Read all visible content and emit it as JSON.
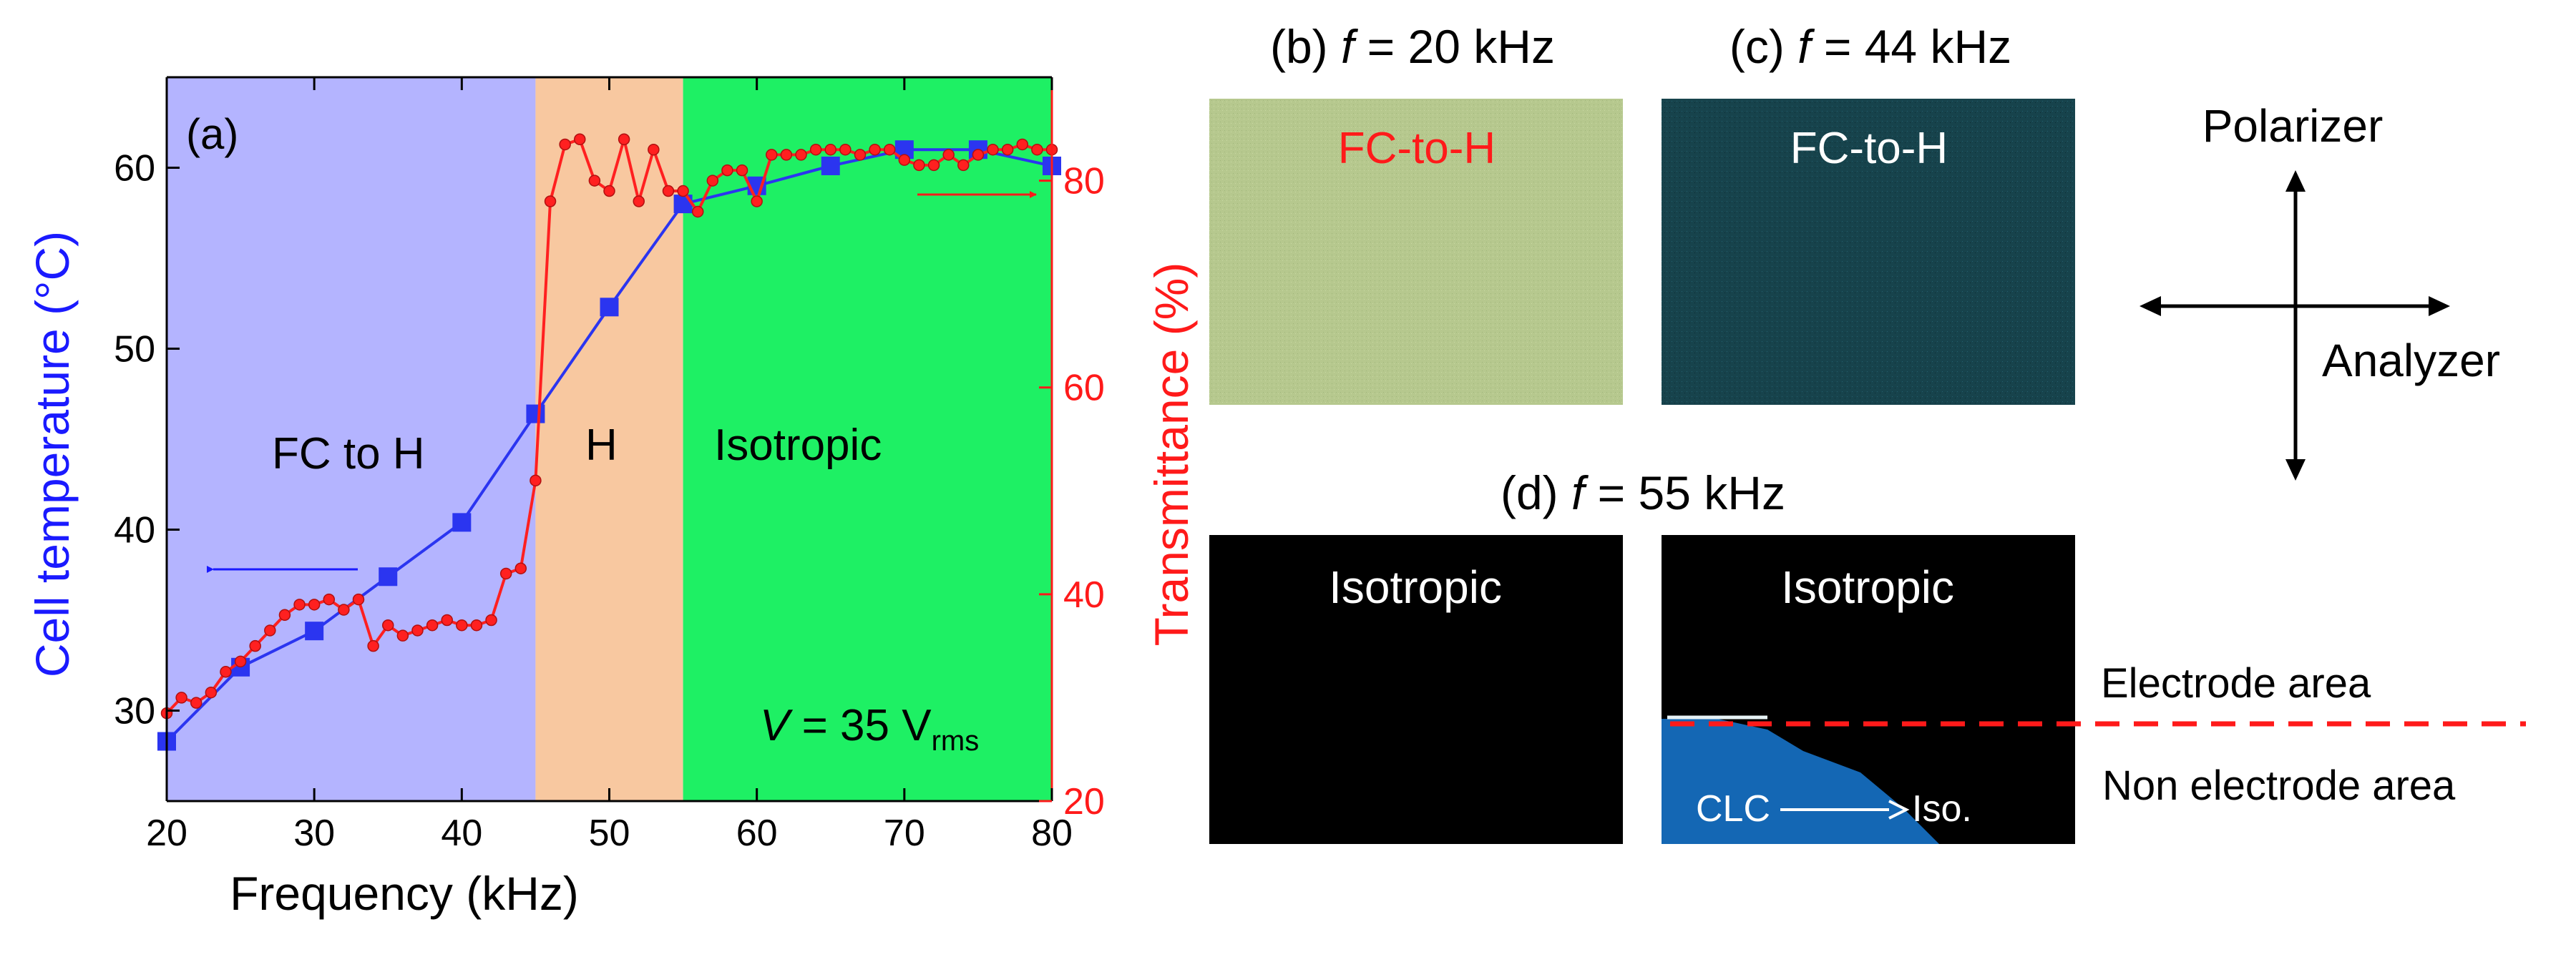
{
  "colors": {
    "left_axis": "#1a1aff",
    "right_axis": "#ff1a1a",
    "fc_region": "#b4b4ff",
    "h_region": "#f8c8a0",
    "iso_region": "#1ef064",
    "temp_series": "#2b35f0",
    "trans_series": "#ff2020",
    "panel_b": "#b6c88e",
    "panel_c": "#17434c",
    "panel_d": "#000000",
    "clc_region": "#1467b4",
    "dash_line": "#ff1a1a"
  },
  "chart_data": {
    "type": "line",
    "panel_label": "(a)",
    "xlabel": "Frequency (kHz)",
    "ylabel_left": "Cell temperature (°C)",
    "ylabel_right": "Transmittance (%)",
    "xlim": [
      20,
      80
    ],
    "ylim_left": [
      25,
      65
    ],
    "ylim_right": [
      20,
      90
    ],
    "x_ticks": [
      20,
      30,
      40,
      50,
      60,
      70,
      80
    ],
    "y_left_ticks": [
      30,
      40,
      50,
      60
    ],
    "y_right_ticks": [
      20,
      40,
      60,
      80
    ],
    "regions": [
      {
        "label": "FC to H",
        "from": 20,
        "to": 45,
        "color_key": "fc_region"
      },
      {
        "label": "H",
        "from": 45,
        "to": 55,
        "color_key": "h_region"
      },
      {
        "label": "Isotropic",
        "from": 55,
        "to": 80,
        "color_key": "iso_region"
      }
    ],
    "voltage_label": {
      "var": "V",
      "eq": " = 35 V",
      "sub": "rms"
    },
    "series": [
      {
        "name": "Cell temperature",
        "axis": "left",
        "marker": "square",
        "x": [
          20,
          25,
          30,
          35,
          40,
          45,
          50,
          55,
          60,
          65,
          70,
          75,
          80
        ],
        "values": [
          28.3,
          32.4,
          34.4,
          37.4,
          40.4,
          46.4,
          52.3,
          58.0,
          59.0,
          60.1,
          61.0,
          61.0,
          60.1
        ]
      },
      {
        "name": "Transmittance",
        "axis": "right",
        "marker": "circle",
        "x": [
          20,
          21,
          22,
          23,
          24,
          25,
          26,
          27,
          28,
          29,
          30,
          31,
          32,
          33,
          34,
          35,
          36,
          37,
          38,
          39,
          40,
          41,
          42,
          43,
          44,
          45,
          46,
          47,
          48,
          49,
          50,
          51,
          52,
          53,
          54,
          55,
          56,
          57,
          58,
          59,
          60,
          61,
          62,
          63,
          64,
          65,
          66,
          67,
          68,
          69,
          70,
          71,
          72,
          73,
          74,
          75,
          76,
          77,
          78,
          79,
          80
        ],
        "values": [
          28.5,
          30,
          29.5,
          30.5,
          32.5,
          33.5,
          35,
          36.5,
          38,
          39,
          39,
          39.5,
          38.5,
          39.5,
          35,
          37,
          36,
          36.5,
          37,
          37.5,
          37,
          37,
          37.5,
          42,
          42.5,
          51,
          78,
          83.5,
          84,
          80,
          79,
          84,
          78,
          83,
          79,
          79,
          77,
          80,
          81,
          81,
          78,
          82.5,
          82.5,
          82.5,
          83,
          83,
          83,
          82.5,
          83,
          83,
          82,
          81.5,
          81.5,
          82.5,
          81.5,
          82.5,
          83,
          83,
          83.5,
          83,
          83
        ]
      }
    ]
  },
  "panels": {
    "b": {
      "prefix": "(b) ",
      "var": "f",
      "suffix": " = 20 kHz",
      "label": "FC-to-H"
    },
    "c": {
      "prefix": "(c) ",
      "var": "f",
      "suffix": " = 44 kHz",
      "label": "FC-to-H"
    },
    "d": {
      "prefix": "(d) ",
      "var": "f",
      "suffix": " = 55 kHz",
      "label_left": "Isotropic",
      "label_right": "Isotropic",
      "clc_label": "CLC",
      "iso_label": "Iso."
    }
  },
  "legend_right": {
    "polarizer": "Polarizer",
    "analyzer": "Analyzer",
    "electrode": "Electrode area",
    "non_electrode": "Non electrode area"
  }
}
